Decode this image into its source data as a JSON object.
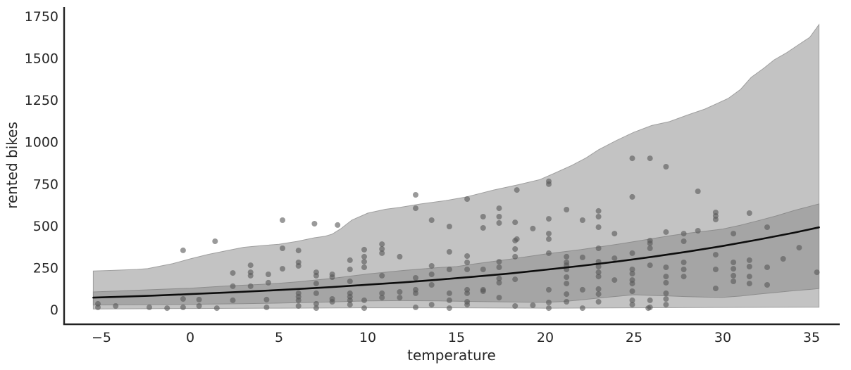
{
  "figure": {
    "background": "#ffffff"
  },
  "chart_data": {
    "type": "scatter",
    "title": "",
    "xlabel": "temperature",
    "ylabel": "rented bikes",
    "xlim": [
      -7.1,
      36.6
    ],
    "ylim": [
      -88,
      1810
    ],
    "x_ticks": [
      -5,
      0,
      5,
      10,
      15,
      20,
      25,
      30,
      35
    ],
    "y_ticks": [
      0,
      250,
      500,
      750,
      1000,
      1250,
      1500,
      1750
    ],
    "grid": false,
    "legend": false,
    "colors": {
      "outer_band": "#c3c3c3",
      "outer_band_edge": "#9f9f9f",
      "inner_band": "#a5a5a5",
      "inner_band_edge": "#8d8d8d",
      "point": "#565656",
      "mean_line": "#0d0d0d",
      "spine": "#222222",
      "tick_label": "#262626"
    },
    "point_opacity": 0.6,
    "point_radius": 4,
    "mean_line": {
      "x": [
        -5.46,
        -4,
        -2,
        0,
        2,
        4,
        6,
        8,
        10,
        12,
        14,
        16,
        18,
        20,
        22,
        24,
        26,
        28,
        30,
        32,
        34,
        35.42
      ],
      "y": [
        71,
        76,
        83,
        92,
        101,
        111,
        122,
        134,
        148,
        162,
        178,
        196,
        215,
        237,
        260,
        286,
        314,
        345,
        379,
        417,
        458,
        490
      ]
    },
    "outer_band": {
      "x": [
        -5.46,
        -4.5,
        -3,
        -2.4,
        -1,
        0,
        1,
        2,
        3,
        4,
        5,
        6,
        7,
        7.6,
        8,
        8.5,
        9.1,
        10,
        11,
        11.8,
        13,
        14.4,
        15.5,
        17.1,
        18.5,
        19.7,
        20.5,
        21.5,
        22.3,
        23,
        24,
        25,
        26,
        27,
        28,
        29,
        29.6,
        30.3,
        31,
        31.6,
        32.3,
        32.9,
        33.6,
        34.3,
        34.9,
        35.42
      ],
      "upper": [
        230,
        233,
        239,
        244,
        273,
        302,
        328,
        350,
        371,
        381,
        389,
        406,
        428,
        437,
        450,
        483,
        533,
        575,
        598,
        609,
        630,
        650,
        670,
        713,
        745,
        775,
        812,
        860,
        905,
        953,
        1008,
        1058,
        1098,
        1121,
        1160,
        1196,
        1225,
        1259,
        1313,
        1385,
        1439,
        1490,
        1532,
        1582,
        1624,
        1700
      ],
      "lower_x": [
        -5.46,
        0,
        5,
        10,
        15,
        20,
        25,
        30,
        35.42
      ],
      "lower": [
        3,
        6,
        8,
        10,
        10,
        8,
        10,
        12,
        14
      ]
    },
    "inner_band": {
      "x": [
        -5.46,
        -4,
        -2,
        0,
        2,
        4,
        5,
        6,
        8,
        10,
        12,
        14,
        15,
        16,
        18,
        20,
        22,
        24,
        25,
        26,
        27,
        28,
        29,
        30,
        31,
        32,
        33,
        34,
        35,
        35.42
      ],
      "upper": [
        105,
        111,
        119,
        127,
        140,
        150,
        156,
        165,
        186,
        212,
        233,
        250,
        256,
        272,
        300,
        331,
        357,
        388,
        405,
        422,
        440,
        455,
        467,
        480,
        503,
        530,
        558,
        590,
        618,
        630
      ],
      "lower_x": [
        -5.46,
        -3,
        0,
        3,
        5,
        8,
        10,
        12,
        14,
        16,
        18,
        20,
        21,
        22,
        23,
        24,
        25,
        26,
        27,
        28,
        29,
        30,
        31,
        32,
        33,
        34,
        35,
        35.42
      ],
      "lower": [
        27,
        29,
        31,
        35,
        38,
        45,
        51,
        53,
        51,
        48,
        45,
        43,
        47,
        57,
        68,
        78,
        88,
        84,
        81,
        77,
        74,
        72,
        80,
        92,
        102,
        112,
        121,
        125
      ]
    },
    "points": [
      [
        -5.2,
        34
      ],
      [
        -5.2,
        13
      ],
      [
        -4.2,
        21
      ],
      [
        -2.3,
        13
      ],
      [
        -1.3,
        8
      ],
      [
        -0.4,
        353
      ],
      [
        -0.4,
        63
      ],
      [
        -0.4,
        13
      ],
      [
        0.5,
        59
      ],
      [
        0.5,
        21
      ],
      [
        1.4,
        407
      ],
      [
        1.5,
        8
      ],
      [
        2.4,
        218
      ],
      [
        2.4,
        139
      ],
      [
        2.4,
        55
      ],
      [
        3.4,
        264
      ],
      [
        3.4,
        222
      ],
      [
        3.4,
        202
      ],
      [
        3.4,
        139
      ],
      [
        4.3,
        59
      ],
      [
        4.3,
        13
      ],
      [
        4.4,
        210
      ],
      [
        4.4,
        160
      ],
      [
        5.2,
        533
      ],
      [
        5.2,
        365
      ],
      [
        5.2,
        243
      ],
      [
        6.1,
        352
      ],
      [
        6.1,
        281
      ],
      [
        6.1,
        260
      ],
      [
        6.1,
        97
      ],
      [
        6.1,
        76
      ],
      [
        6.1,
        55
      ],
      [
        6.1,
        21
      ],
      [
        7.0,
        512
      ],
      [
        7.1,
        222
      ],
      [
        7.1,
        202
      ],
      [
        7.1,
        155
      ],
      [
        7.1,
        97
      ],
      [
        7.1,
        34
      ],
      [
        7.1,
        8
      ],
      [
        8.0,
        210
      ],
      [
        8.0,
        193
      ],
      [
        8.0,
        63
      ],
      [
        8.0,
        46
      ],
      [
        8.3,
        504
      ],
      [
        9.0,
        294
      ],
      [
        9.0,
        239
      ],
      [
        9.0,
        168
      ],
      [
        9.0,
        97
      ],
      [
        9.0,
        76
      ],
      [
        9.0,
        55
      ],
      [
        9.0,
        29
      ],
      [
        9.8,
        357
      ],
      [
        9.8,
        315
      ],
      [
        9.8,
        285
      ],
      [
        9.8,
        252
      ],
      [
        9.8,
        55
      ],
      [
        9.8,
        8
      ],
      [
        10.8,
        390
      ],
      [
        10.8,
        361
      ],
      [
        10.8,
        336
      ],
      [
        10.8,
        202
      ],
      [
        10.8,
        97
      ],
      [
        10.8,
        71
      ],
      [
        11.8,
        315
      ],
      [
        11.8,
        105
      ],
      [
        11.8,
        71
      ],
      [
        12.7,
        684
      ],
      [
        12.7,
        604
      ],
      [
        12.7,
        189
      ],
      [
        12.7,
        118
      ],
      [
        12.7,
        97
      ],
      [
        12.7,
        13
      ],
      [
        13.6,
        533
      ],
      [
        13.6,
        260
      ],
      [
        13.6,
        210
      ],
      [
        13.6,
        147
      ],
      [
        13.6,
        29
      ],
      [
        14.6,
        495
      ],
      [
        14.6,
        344
      ],
      [
        14.6,
        239
      ],
      [
        14.6,
        97
      ],
      [
        14.6,
        55
      ],
      [
        14.6,
        8
      ],
      [
        15.6,
        659
      ],
      [
        15.6,
        319
      ],
      [
        15.6,
        281
      ],
      [
        15.6,
        239
      ],
      [
        15.6,
        118
      ],
      [
        15.6,
        97
      ],
      [
        15.6,
        46
      ],
      [
        15.6,
        29
      ],
      [
        16.5,
        554
      ],
      [
        16.5,
        487
      ],
      [
        16.5,
        239
      ],
      [
        16.5,
        118
      ],
      [
        16.5,
        109
      ],
      [
        17.4,
        604
      ],
      [
        17.4,
        554
      ],
      [
        17.4,
        516
      ],
      [
        17.4,
        285
      ],
      [
        17.4,
        252
      ],
      [
        17.4,
        185
      ],
      [
        17.4,
        160
      ],
      [
        17.4,
        71
      ],
      [
        18.4,
        713
      ],
      [
        18.3,
        520
      ],
      [
        18.3,
        411
      ],
      [
        18.3,
        361
      ],
      [
        18.3,
        315
      ],
      [
        18.3,
        180
      ],
      [
        18.3,
        21
      ],
      [
        18.4,
        420
      ],
      [
        19.3,
        483
      ],
      [
        19.3,
        25
      ],
      [
        20.2,
        765
      ],
      [
        20.2,
        748
      ],
      [
        20.2,
        541
      ],
      [
        20.2,
        453
      ],
      [
        20.2,
        420
      ],
      [
        20.2,
        336
      ],
      [
        20.2,
        118
      ],
      [
        20.2,
        42
      ],
      [
        20.2,
        8
      ],
      [
        21.2,
        596
      ],
      [
        21.2,
        315
      ],
      [
        21.2,
        281
      ],
      [
        21.2,
        264
      ],
      [
        21.2,
        239
      ],
      [
        21.2,
        193
      ],
      [
        21.2,
        155
      ],
      [
        21.2,
        92
      ],
      [
        21.2,
        46
      ],
      [
        22.1,
        533
      ],
      [
        22.1,
        311
      ],
      [
        22.1,
        118
      ],
      [
        22.1,
        8
      ],
      [
        23.0,
        588
      ],
      [
        23.0,
        554
      ],
      [
        23.0,
        491
      ],
      [
        23.0,
        365
      ],
      [
        23.0,
        285
      ],
      [
        23.0,
        256
      ],
      [
        23.0,
        222
      ],
      [
        23.0,
        197
      ],
      [
        23.0,
        122
      ],
      [
        23.0,
        92
      ],
      [
        23.0,
        46
      ],
      [
        23.9,
        453
      ],
      [
        23.9,
        306
      ],
      [
        23.9,
        176
      ],
      [
        24.9,
        902
      ],
      [
        24.9,
        672
      ],
      [
        24.9,
        336
      ],
      [
        24.9,
        239
      ],
      [
        24.9,
        214
      ],
      [
        24.9,
        176
      ],
      [
        24.9,
        155
      ],
      [
        24.9,
        109
      ],
      [
        24.9,
        55
      ],
      [
        24.9,
        29
      ],
      [
        25.9,
        902
      ],
      [
        25.9,
        411
      ],
      [
        25.9,
        395
      ],
      [
        25.9,
        365
      ],
      [
        25.9,
        264
      ],
      [
        25.9,
        55
      ],
      [
        25.9,
        13
      ],
      [
        25.8,
        8
      ],
      [
        26.8,
        852
      ],
      [
        26.8,
        462
      ],
      [
        26.8,
        252
      ],
      [
        26.8,
        197
      ],
      [
        26.8,
        160
      ],
      [
        26.8,
        97
      ],
      [
        26.8,
        63
      ],
      [
        26.8,
        29
      ],
      [
        27.8,
        453
      ],
      [
        27.8,
        407
      ],
      [
        27.8,
        281
      ],
      [
        27.8,
        239
      ],
      [
        27.8,
        197
      ],
      [
        28.6,
        705
      ],
      [
        28.6,
        470
      ],
      [
        29.6,
        579
      ],
      [
        29.6,
        558
      ],
      [
        29.6,
        537
      ],
      [
        29.6,
        327
      ],
      [
        29.6,
        239
      ],
      [
        29.6,
        126
      ],
      [
        30.6,
        453
      ],
      [
        30.6,
        281
      ],
      [
        30.6,
        243
      ],
      [
        30.6,
        202
      ],
      [
        30.6,
        168
      ],
      [
        31.5,
        575
      ],
      [
        31.5,
        294
      ],
      [
        31.5,
        256
      ],
      [
        31.5,
        197
      ],
      [
        31.5,
        155
      ],
      [
        32.5,
        491
      ],
      [
        32.5,
        252
      ],
      [
        32.5,
        147
      ],
      [
        33.4,
        302
      ],
      [
        34.3,
        369
      ],
      [
        35.3,
        222
      ]
    ]
  }
}
